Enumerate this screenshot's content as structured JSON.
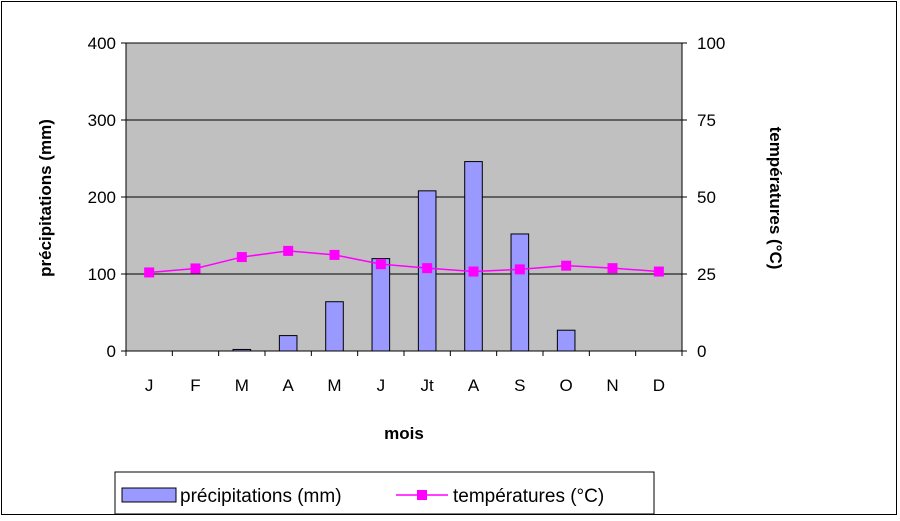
{
  "chart_data": {
    "type": "bar",
    "categories": [
      "J",
      "F",
      "M",
      "A",
      "M",
      "J",
      "Jt",
      "A",
      "S",
      "O",
      "N",
      "D"
    ],
    "series": [
      {
        "name": "précipitations (mm)",
        "kind": "bar",
        "axis": "left",
        "color": "#9999ff",
        "values": [
          0,
          0,
          2,
          20,
          64,
          120,
          208,
          246,
          152,
          27,
          0,
          0
        ]
      },
      {
        "name": "températures (°C)",
        "kind": "line",
        "axis": "right",
        "color": "#ff00ff",
        "values": [
          25.5,
          26.8,
          30.5,
          32.5,
          31.2,
          28.2,
          26.9,
          25.8,
          26.5,
          27.7,
          26.9,
          25.8
        ]
      }
    ],
    "xlabel": "mois",
    "ylabel": "précipitations (mm)",
    "y2label": "températures (°C)",
    "ylim": [
      0,
      400
    ],
    "y2lim": [
      0,
      100
    ],
    "yticks": [
      "0",
      "100",
      "200",
      "300",
      "400"
    ],
    "y2ticks": [
      "0",
      "25",
      "50",
      "75",
      "100"
    ],
    "plot_background": "#c0c0c0",
    "grid": true,
    "legend": "bottom",
    "legend_labels": {
      "bar": "précipitations (mm)",
      "line": "températures (°C)"
    }
  }
}
